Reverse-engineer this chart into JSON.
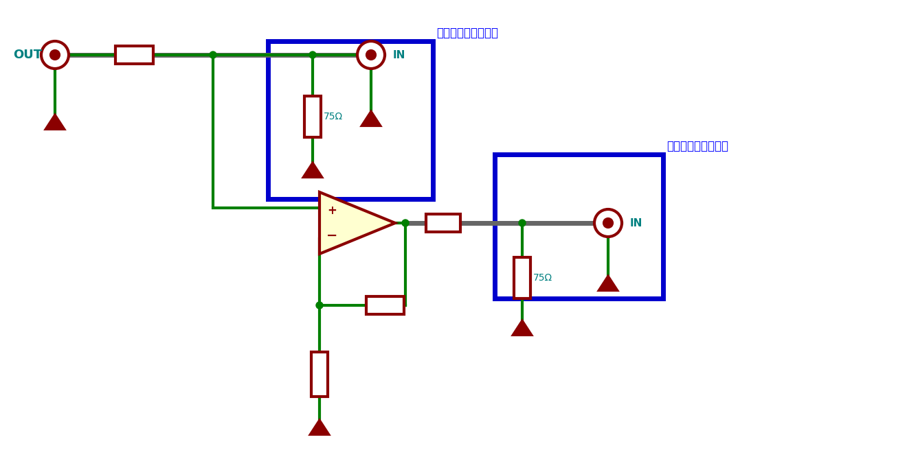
{
  "bg_color": "#ffffff",
  "wire_color": "#008000",
  "signal_wire_color": "#666666",
  "component_color": "#8b0000",
  "component_fill": "#ffffff",
  "box_color": "#0000cd",
  "label_color": "#008080",
  "text_color": "#0000ff",
  "opamp_fill": "#ffffd0",
  "resistor_label": "75Ω",
  "box1_label": "受信回路１（機器）",
  "box2_label": "受信回路２（機器）",
  "input_label": "OUT",
  "out1_label": "IN",
  "out2_label": "IN"
}
